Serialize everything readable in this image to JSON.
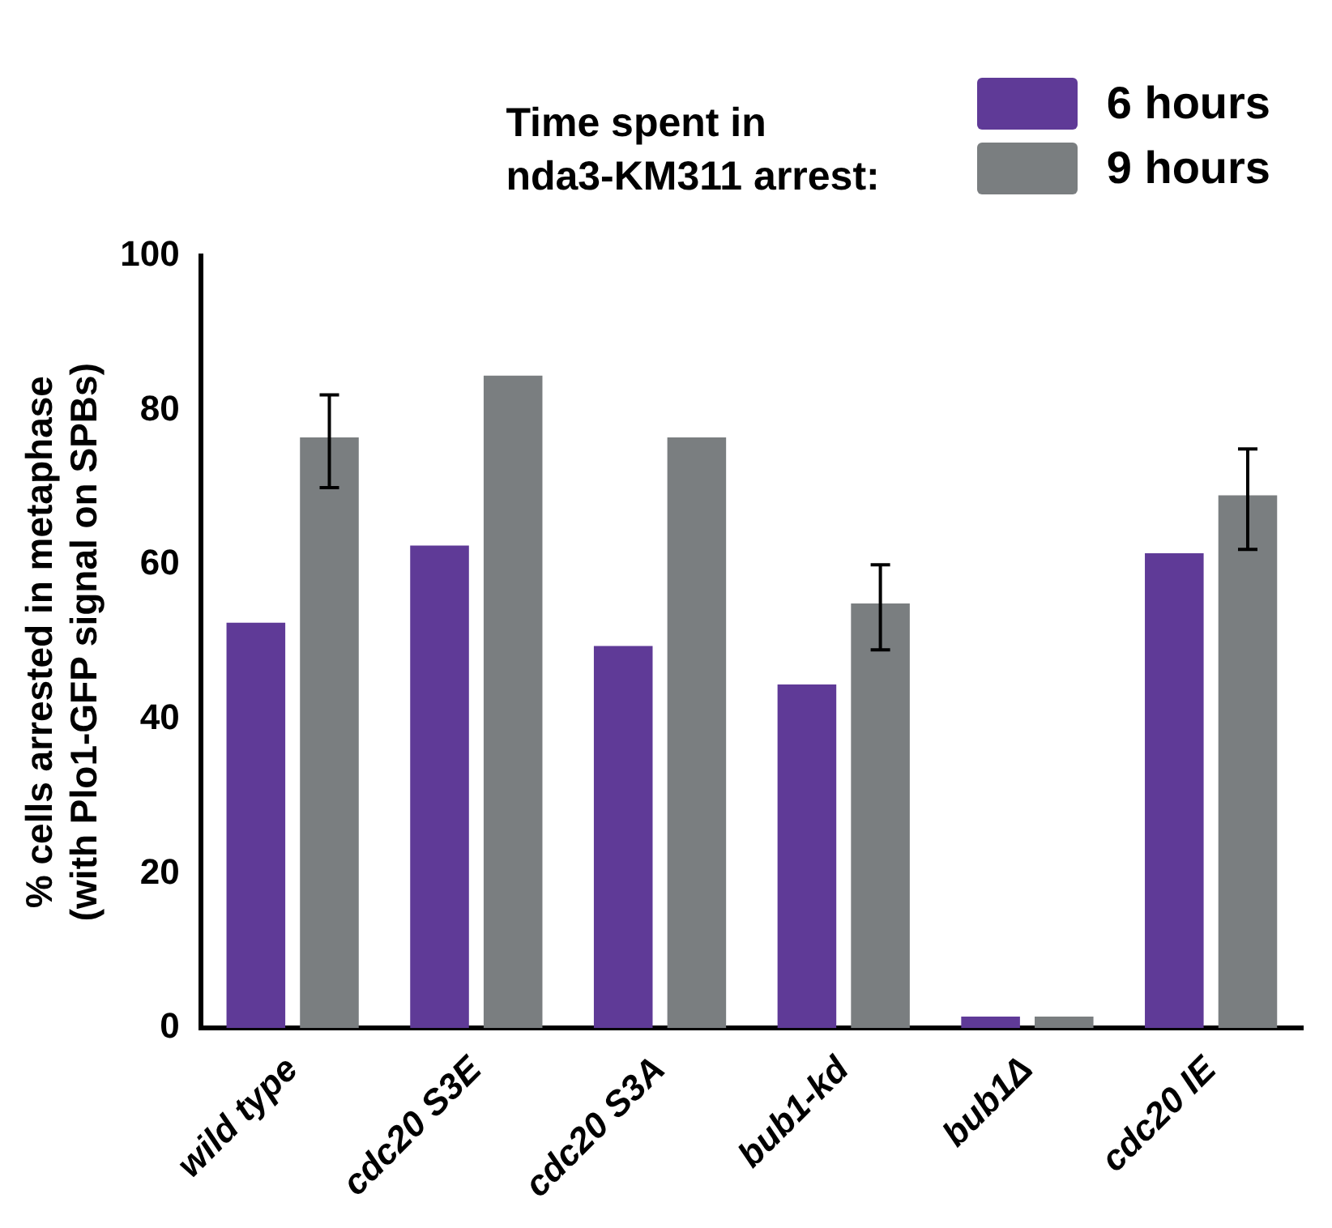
{
  "chart_data": {
    "type": "bar",
    "legend_title": "Time spent in\nnda3-KM311 arrest:",
    "ylabel": "% cells arrested in metaphase\n(with Plo1-GFP signal on SPBs)",
    "categories": [
      "wild type",
      "cdc20 S3E",
      "cdc20 S3A",
      "bub1-kd",
      "bub1Δ",
      "cdc20 IE"
    ],
    "series": [
      {
        "name": "6 hours",
        "color": "#5f3a97",
        "values": [
          52.5,
          62.5,
          49.5,
          44.5,
          1.5,
          61.5
        ]
      },
      {
        "name": "9 hours",
        "color": "#7a7e80",
        "values": [
          76.5,
          84.5,
          76.5,
          55,
          1.5,
          69
        ],
        "errors": [
          [
            70,
            82
          ],
          null,
          null,
          [
            49,
            60
          ],
          null,
          [
            62,
            75
          ]
        ]
      }
    ],
    "ylim": [
      0,
      100
    ],
    "yticks": [
      0,
      20,
      40,
      60,
      80,
      100
    ],
    "grid": false,
    "legend": "top right"
  }
}
